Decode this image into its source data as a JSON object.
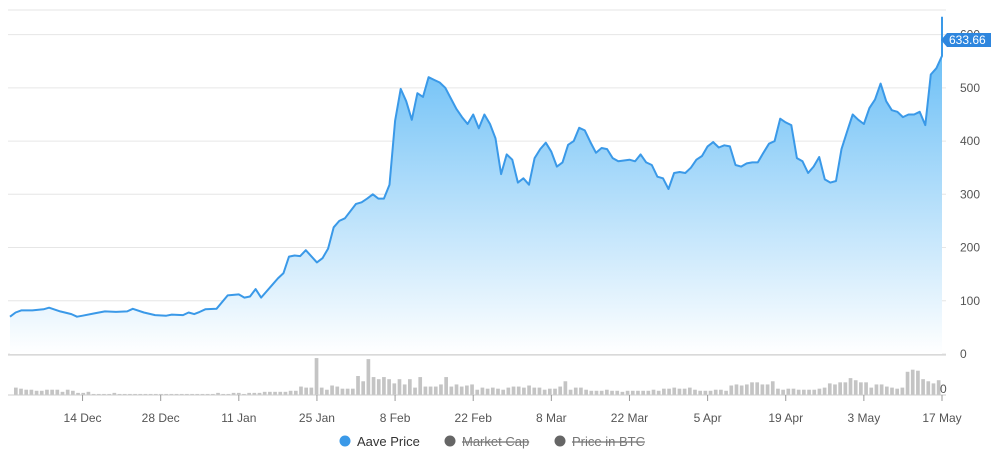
{
  "chart_data": {
    "type": "area",
    "title": "",
    "xlabel": "",
    "ylabel": "",
    "ylim": [
      0,
      650
    ],
    "y_ticks": [
      0,
      100,
      200,
      300,
      400,
      500,
      600
    ],
    "y_tick_labels": [
      "0",
      "100",
      "200",
      "300",
      "400",
      "500",
      "600"
    ],
    "x_tick_labels": [
      "14 Dec",
      "28 Dec",
      "11 Jan",
      "25 Jan",
      "8 Feb",
      "22 Feb",
      "8 Mar",
      "22 Mar",
      "5 Apr",
      "19 Apr",
      "3 May",
      "17 May"
    ],
    "x_tick_dates": [
      "2020-12-14",
      "2020-12-28",
      "2021-01-11",
      "2021-01-25",
      "2021-02-08",
      "2021-02-22",
      "2021-03-08",
      "2021-03-22",
      "2021-04-05",
      "2021-04-19",
      "2021-05-03",
      "2021-05-17"
    ],
    "x_range": [
      "2020-12-01",
      "2021-05-17"
    ],
    "grid": true,
    "legend_position": "bottom-center",
    "current_value_label": "633.66",
    "volume_axis_label": "0",
    "series": [
      {
        "name": "Aave Price",
        "color": "#3a99e8",
        "visible": true,
        "points": [
          [
            "2020-12-01",
            70
          ],
          [
            "2020-12-02",
            78
          ],
          [
            "2020-12-03",
            82
          ],
          [
            "2020-12-05",
            82
          ],
          [
            "2020-12-07",
            84
          ],
          [
            "2020-12-08",
            87
          ],
          [
            "2020-12-10",
            80
          ],
          [
            "2020-12-12",
            75
          ],
          [
            "2020-12-13",
            70
          ],
          [
            "2020-12-14",
            72
          ],
          [
            "2020-12-16",
            76
          ],
          [
            "2020-12-18",
            80
          ],
          [
            "2020-12-20",
            79
          ],
          [
            "2020-12-22",
            80
          ],
          [
            "2020-12-23",
            85
          ],
          [
            "2020-12-25",
            78
          ],
          [
            "2020-12-27",
            73
          ],
          [
            "2020-12-29",
            72
          ],
          [
            "2020-12-30",
            74
          ],
          [
            "2021-01-01",
            73
          ],
          [
            "2021-01-02",
            78
          ],
          [
            "2021-01-03",
            75
          ],
          [
            "2021-01-04",
            79
          ],
          [
            "2021-01-05",
            84
          ],
          [
            "2021-01-07",
            85
          ],
          [
            "2021-01-09",
            110
          ],
          [
            "2021-01-11",
            112
          ],
          [
            "2021-01-12",
            106
          ],
          [
            "2021-01-13",
            108
          ],
          [
            "2021-01-14",
            122
          ],
          [
            "2021-01-15",
            106
          ],
          [
            "2021-01-17",
            130
          ],
          [
            "2021-01-18",
            142
          ],
          [
            "2021-01-19",
            152
          ],
          [
            "2021-01-20",
            183
          ],
          [
            "2021-01-21",
            185
          ],
          [
            "2021-01-22",
            184
          ],
          [
            "2021-01-23",
            195
          ],
          [
            "2021-01-25",
            172
          ],
          [
            "2021-01-26",
            180
          ],
          [
            "2021-01-27",
            198
          ],
          [
            "2021-01-28",
            238
          ],
          [
            "2021-01-29",
            250
          ],
          [
            "2021-01-30",
            255
          ],
          [
            "2021-02-01",
            282
          ],
          [
            "2021-02-02",
            285
          ],
          [
            "2021-02-03",
            292
          ],
          [
            "2021-02-04",
            300
          ],
          [
            "2021-02-05",
            292
          ],
          [
            "2021-02-06",
            292
          ],
          [
            "2021-02-07",
            318
          ],
          [
            "2021-02-08",
            438
          ],
          [
            "2021-02-09",
            498
          ],
          [
            "2021-02-10",
            475
          ],
          [
            "2021-02-11",
            440
          ],
          [
            "2021-02-12",
            490
          ],
          [
            "2021-02-13",
            483
          ],
          [
            "2021-02-14",
            520
          ],
          [
            "2021-02-15",
            515
          ],
          [
            "2021-02-16",
            510
          ],
          [
            "2021-02-17",
            500
          ],
          [
            "2021-02-18",
            480
          ],
          [
            "2021-02-19",
            460
          ],
          [
            "2021-02-20",
            445
          ],
          [
            "2021-02-21",
            432
          ],
          [
            "2021-02-22",
            450
          ],
          [
            "2021-02-23",
            424
          ],
          [
            "2021-02-24",
            450
          ],
          [
            "2021-02-25",
            432
          ],
          [
            "2021-02-26",
            405
          ],
          [
            "2021-02-27",
            338
          ],
          [
            "2021-02-28",
            375
          ],
          [
            "2021-03-01",
            365
          ],
          [
            "2021-03-02",
            322
          ],
          [
            "2021-03-03",
            330
          ],
          [
            "2021-03-04",
            318
          ],
          [
            "2021-03-05",
            368
          ],
          [
            "2021-03-06",
            385
          ],
          [
            "2021-03-07",
            397
          ],
          [
            "2021-03-08",
            380
          ],
          [
            "2021-03-09",
            352
          ],
          [
            "2021-03-10",
            360
          ],
          [
            "2021-03-11",
            393
          ],
          [
            "2021-03-12",
            400
          ],
          [
            "2021-03-13",
            425
          ],
          [
            "2021-03-14",
            420
          ],
          [
            "2021-03-15",
            398
          ],
          [
            "2021-03-16",
            378
          ],
          [
            "2021-03-17",
            387
          ],
          [
            "2021-03-18",
            385
          ],
          [
            "2021-03-19",
            368
          ],
          [
            "2021-03-20",
            362
          ],
          [
            "2021-03-22",
            365
          ],
          [
            "2021-03-23",
            362
          ],
          [
            "2021-03-24",
            375
          ],
          [
            "2021-03-25",
            360
          ],
          [
            "2021-03-26",
            355
          ],
          [
            "2021-03-27",
            333
          ],
          [
            "2021-03-28",
            330
          ],
          [
            "2021-03-29",
            310
          ],
          [
            "2021-03-30",
            340
          ],
          [
            "2021-03-31",
            342
          ],
          [
            "2021-04-01",
            340
          ],
          [
            "2021-04-02",
            350
          ],
          [
            "2021-04-03",
            365
          ],
          [
            "2021-04-04",
            372
          ],
          [
            "2021-04-05",
            390
          ],
          [
            "2021-04-06",
            398
          ],
          [
            "2021-04-07",
            388
          ],
          [
            "2021-04-08",
            392
          ],
          [
            "2021-04-09",
            390
          ],
          [
            "2021-04-10",
            355
          ],
          [
            "2021-04-11",
            352
          ],
          [
            "2021-04-12",
            358
          ],
          [
            "2021-04-13",
            360
          ],
          [
            "2021-04-14",
            360
          ],
          [
            "2021-04-15",
            378
          ],
          [
            "2021-04-16",
            395
          ],
          [
            "2021-04-17",
            400
          ],
          [
            "2021-04-18",
            442
          ],
          [
            "2021-04-19",
            435
          ],
          [
            "2021-04-20",
            430
          ],
          [
            "2021-04-21",
            368
          ],
          [
            "2021-04-22",
            362
          ],
          [
            "2021-04-23",
            340
          ],
          [
            "2021-04-24",
            352
          ],
          [
            "2021-04-25",
            370
          ],
          [
            "2021-04-26",
            328
          ],
          [
            "2021-04-27",
            322
          ],
          [
            "2021-04-28",
            325
          ],
          [
            "2021-04-29",
            385
          ],
          [
            "2021-04-30",
            418
          ],
          [
            "2021-05-01",
            450
          ],
          [
            "2021-05-02",
            440
          ],
          [
            "2021-05-03",
            432
          ],
          [
            "2021-05-04",
            462
          ],
          [
            "2021-05-05",
            478
          ],
          [
            "2021-05-06",
            508
          ],
          [
            "2021-05-07",
            475
          ],
          [
            "2021-05-08",
            458
          ],
          [
            "2021-05-09",
            455
          ],
          [
            "2021-05-10",
            445
          ],
          [
            "2021-05-11",
            450
          ],
          [
            "2021-05-12",
            450
          ],
          [
            "2021-05-13",
            455
          ],
          [
            "2021-05-14",
            430
          ],
          [
            "2021-05-15",
            525
          ],
          [
            "2021-05-16",
            537
          ],
          [
            "2021-05-17",
            560
          ],
          [
            "2021-05-17",
            633.66
          ]
        ]
      },
      {
        "name": "Market Cap",
        "color": "#666666",
        "visible": false
      },
      {
        "name": "Price in BTC",
        "color": "#666666",
        "visible": false
      }
    ],
    "volume_bars": [
      7,
      6,
      5,
      5,
      4,
      4,
      5,
      5,
      5,
      3,
      5,
      4,
      2,
      2,
      3,
      1,
      1,
      1,
      1,
      2,
      1,
      1,
      1,
      1,
      1,
      1,
      1,
      1,
      1,
      1,
      1,
      1,
      1,
      1,
      1,
      1,
      1,
      1,
      1,
      2,
      1,
      1,
      2,
      2,
      1,
      2,
      2,
      2,
      3,
      3,
      3,
      3,
      3,
      4,
      4,
      8,
      7,
      7,
      35,
      7,
      5,
      9,
      8,
      6,
      6,
      6,
      18,
      13,
      34,
      17,
      15,
      17,
      15,
      11,
      15,
      10,
      15,
      7,
      17,
      8,
      8,
      8,
      10,
      17,
      8,
      10,
      8,
      9,
      10,
      5,
      7,
      6,
      7,
      6,
      5,
      7,
      8,
      8,
      7,
      9,
      7,
      7,
      5,
      6,
      6,
      8,
      13,
      5,
      7,
      7,
      5,
      4,
      4,
      4,
      5,
      4,
      4,
      3,
      4,
      4,
      4,
      4,
      4,
      5,
      4,
      6,
      6,
      7,
      6,
      6,
      7,
      5,
      4,
      4,
      4,
      5,
      5,
      4,
      9,
      10,
      9,
      10,
      12,
      12,
      10,
      10,
      13,
      6,
      5,
      6,
      6,
      5,
      5,
      5,
      5,
      6,
      7,
      11,
      10,
      12,
      12,
      16,
      14,
      12,
      12,
      7,
      10,
      10,
      8,
      7,
      6,
      7,
      22,
      24,
      23,
      15,
      13,
      11,
      14
    ]
  },
  "legend": {
    "items": [
      {
        "label": "Aave Price",
        "color": "#3a99e8",
        "active": true
      },
      {
        "label": "Market Cap",
        "color": "#666666",
        "active": false
      },
      {
        "label": "Price in BTC",
        "color": "#666666",
        "active": false
      }
    ]
  },
  "colors": {
    "line": "#3a99e8",
    "area_top": "#5bb8f5",
    "area_bottom": "#ffffff",
    "grid": "#e6e6e6",
    "axis_text": "#555555",
    "volume_bar": "#c4c4c4",
    "label_bg": "#2e86de",
    "label_text": "#ffffff"
  }
}
